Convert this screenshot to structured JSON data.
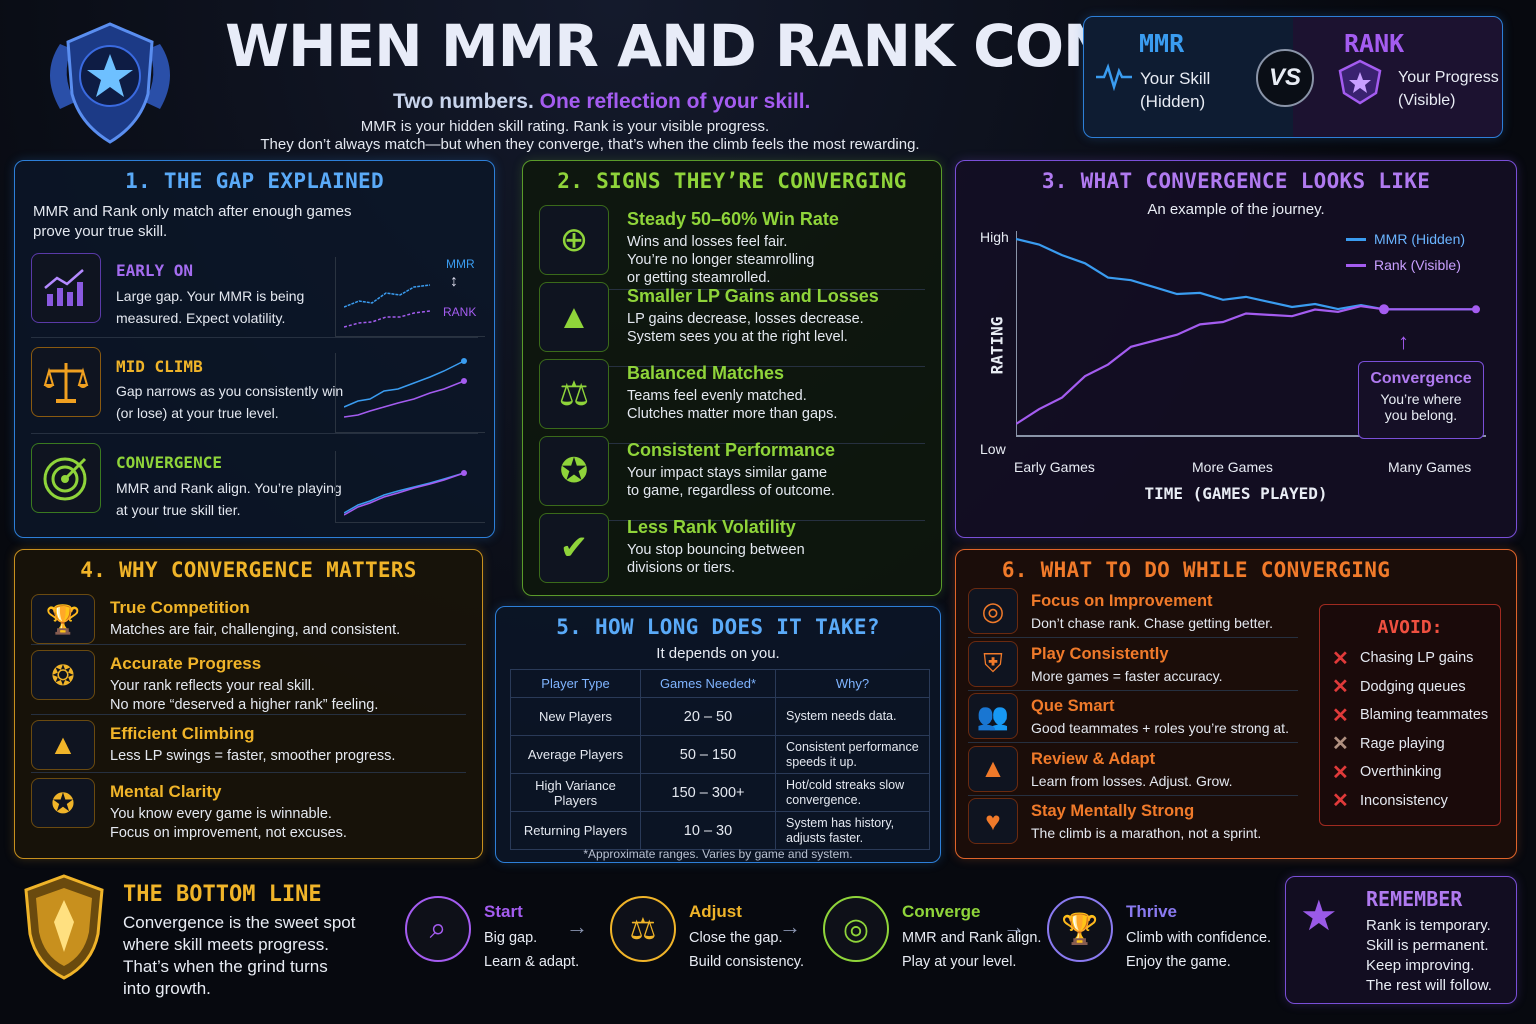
{
  "header": {
    "title": "WHEN MMR AND RANK CONVERGE",
    "subtitle_a": "Two numbers.",
    "subtitle_b": "One reflection of your skill.",
    "desc1": "MMR is your hidden skill rating. Rank is your visible progress.",
    "desc2": "They don’t always match—but when they converge, that’s when the climb feels the most rewarding."
  },
  "vs": {
    "mmr_title": "MMR",
    "mmr_l1": "Your Skill",
    "mmr_l2": "(Hidden)",
    "vs": "VS",
    "rank_title": "RANK",
    "rank_l1": "Your Progress",
    "rank_l2": "(Visible)"
  },
  "gap": {
    "title": "1. THE GAP EXPLAINED",
    "intro1": "MMR and Rank only match after enough games",
    "intro2": "prove your true skill.",
    "mmr_tag": "MMR",
    "rank_tag": "RANK",
    "stages": [
      {
        "name": "EARLY ON",
        "l1": "Large gap. Your MMR is being",
        "l2": "measured. Expect volatility."
      },
      {
        "name": "MID CLIMB",
        "l1": "Gap narrows as you consistently win",
        "l2": "(or lose) at your true level."
      },
      {
        "name": "CONVERGENCE",
        "l1": "MMR and Rank align. You’re playing",
        "l2": "at your true skill tier."
      }
    ]
  },
  "signs": {
    "title": "2. SIGNS THEY’RE CONVERGING",
    "items": [
      {
        "title": "Steady 50–60% Win Rate",
        "l1": "Wins and losses feel fair.",
        "l2": "You’re no longer steamrolling",
        "l3": "or getting steamrolled."
      },
      {
        "title": "Smaller LP Gains and Losses",
        "l1": "LP gains decrease, losses decrease.",
        "l2": "System sees you at the right level.",
        "l3": ""
      },
      {
        "title": "Balanced Matches",
        "l1": "Teams feel evenly matched.",
        "l2": "Clutches matter more than gaps.",
        "l3": ""
      },
      {
        "title": "Consistent Performance",
        "l1": "Your impact stays similar game",
        "l2": "to game, regardless of outcome.",
        "l3": ""
      },
      {
        "title": "Less Rank Volatility",
        "l1": "You stop bouncing between",
        "l2": "divisions or tiers.",
        "l3": ""
      }
    ]
  },
  "conv": {
    "title": "3. WHAT CONVERGENCE LOOKS LIKE",
    "sub": "An example of the journey.",
    "y_high": "High",
    "y_low": "Low",
    "ylabel": "RATING",
    "xlabel": "TIME (GAMES PLAYED)",
    "x_ticks": [
      "Early Games",
      "More Games",
      "Many Games"
    ],
    "legend": [
      "MMR (Hidden)",
      "Rank (Visible)"
    ],
    "callout_title": "Convergence",
    "callout_l1": "You’re where",
    "callout_l2": "you belong."
  },
  "chart_data": {
    "type": "line",
    "title": "3. WHAT CONVERGENCE LOOKS LIKE",
    "xlabel": "TIME (GAMES PLAYED)",
    "ylabel": "RATING",
    "x_ticks": [
      "Early Games",
      "More Games",
      "Many Games"
    ],
    "y_ticks": [
      "Low",
      "High"
    ],
    "x": [
      0,
      0.05,
      0.1,
      0.15,
      0.2,
      0.25,
      0.3,
      0.35,
      0.4,
      0.45,
      0.5,
      0.55,
      0.6,
      0.65,
      0.7,
      0.75,
      0.8,
      0.85,
      0.9,
      0.95,
      1.0
    ],
    "series": [
      {
        "name": "MMR (Hidden)",
        "color": "#3a9cf0",
        "values": [
          1.0,
          0.97,
          0.93,
          0.86,
          0.8,
          0.76,
          0.74,
          0.72,
          0.7,
          0.68,
          0.67,
          0.66,
          0.65,
          0.64,
          0.63,
          0.625,
          0.62,
          0.62,
          0.62,
          0.62,
          0.62
        ]
      },
      {
        "name": "Rank (Visible)",
        "color": "#a45cf0",
        "values": [
          0.0,
          0.08,
          0.16,
          0.25,
          0.33,
          0.4,
          0.45,
          0.5,
          0.53,
          0.56,
          0.58,
          0.59,
          0.6,
          0.61,
          0.615,
          0.62,
          0.62,
          0.62,
          0.62,
          0.62,
          0.62
        ]
      }
    ]
  },
  "why": {
    "title": "4. WHY CONVERGENCE MATTERS",
    "items": [
      {
        "title": "True Competition",
        "l1": "Matches are fair, challenging, and consistent.",
        "l2": ""
      },
      {
        "title": "Accurate Progress",
        "l1": "Your rank reflects your real skill.",
        "l2": "No more “deserved a higher rank” feeling."
      },
      {
        "title": "Efficient Climbing",
        "l1": "Less LP swings = faster, smoother progress.",
        "l2": ""
      },
      {
        "title": "Mental Clarity",
        "l1": "You know every game is winnable.",
        "l2": "Focus on improvement, not excuses."
      }
    ]
  },
  "howlong": {
    "title": "5. HOW LONG DOES IT TAKE?",
    "sub": "It depends on you.",
    "headers": [
      "Player Type",
      "Games Needed*",
      "Why?"
    ],
    "rows": [
      [
        "New Players",
        "20 – 50",
        "System needs data."
      ],
      [
        "Average Players",
        "50 – 150",
        "Consistent performance speeds it up."
      ],
      [
        "High Variance Players",
        "150 – 300+",
        "Hot/cold streaks slow convergence."
      ],
      [
        "Returning Players",
        "10 – 30",
        "System has history, adjusts faster."
      ]
    ],
    "note": "*Approximate ranges. Varies by game and system."
  },
  "todo": {
    "title": "6. WHAT TO DO WHILE CONVERGING",
    "items": [
      {
        "title": "Focus on Improvement",
        "desc": "Don’t chase rank. Chase getting better."
      },
      {
        "title": "Play Consistently",
        "desc": "More games = faster accuracy."
      },
      {
        "title": "Que Smart",
        "desc": "Good teammates + roles you’re strong at."
      },
      {
        "title": "Review & Adapt",
        "desc": "Learn from losses. Adjust. Grow."
      },
      {
        "title": "Stay Mentally Strong",
        "desc": "The climb is a marathon, not a sprint."
      }
    ],
    "avoid_title": "AVOID:",
    "avoid": [
      "Chasing LP gains",
      "Dodging queues",
      "Blaming teammates",
      "Rage playing",
      "Overthinking",
      "Inconsistency"
    ]
  },
  "bottom": {
    "title": "THE BOTTOM LINE",
    "l1": "Convergence is the sweet spot",
    "l2": "where skill meets progress.",
    "l3": "That’s when the grind turns",
    "l4": "into growth.",
    "steps": [
      {
        "name": "Start",
        "l1": "Big gap.",
        "l2": "Learn & adapt."
      },
      {
        "name": "Adjust",
        "l1": "Close the gap.",
        "l2": "Build consistency."
      },
      {
        "name": "Converge",
        "l1": "MMR and Rank align.",
        "l2": "Play at your level."
      },
      {
        "name": "Thrive",
        "l1": "Climb with confidence.",
        "l2": "Enjoy the game."
      }
    ]
  },
  "remember": {
    "title": "REMEMBER",
    "l1": "Rank is temporary.",
    "l2": "Skill is permanent.",
    "l3": "Keep improving.",
    "l4": "The rest will follow."
  },
  "colors": {
    "blue": "#3a9cf0",
    "purple": "#a45cf0",
    "green": "#8fd43a",
    "gold": "#f0b429",
    "orange": "#f07a2a"
  }
}
